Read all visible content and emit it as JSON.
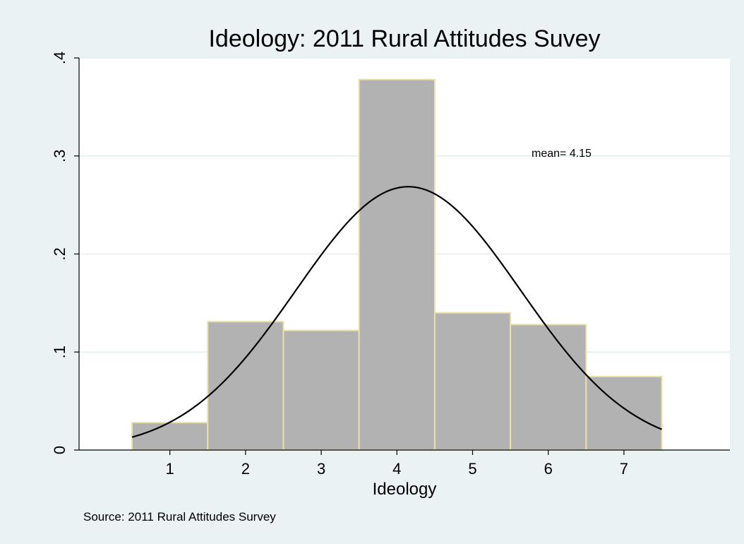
{
  "chart_data": {
    "type": "bar",
    "title": "Ideology: 2011 Rural Attitudes Suvey",
    "xlabel": "Ideology",
    "ylabel": "",
    "categories": [
      1,
      2,
      3,
      4,
      5,
      6,
      7
    ],
    "values": [
      0.028,
      0.131,
      0.122,
      0.378,
      0.14,
      0.128,
      0.075
    ],
    "x_ticks": [
      1,
      2,
      3,
      4,
      5,
      6,
      7
    ],
    "y_ticks": [
      0,
      0.1,
      0.2,
      0.3,
      0.4
    ],
    "y_tick_labels": [
      "0",
      ".1",
      ".2",
      ".3",
      ".4"
    ],
    "xlim": [
      -0.2,
      8.4
    ],
    "ylim": [
      0,
      0.4
    ],
    "grid": true,
    "overlay": {
      "type": "normal-density",
      "mean": 4.15,
      "sd": 1.485
    },
    "annotation": "mean= 4.15",
    "note": "Source: 2011 Rural Attitudes Survey",
    "colors": {
      "background": "#eaf2f3",
      "plot_background": "#ffffff",
      "bar_fill": "#b2b2b2",
      "bar_outline": "#e8e2a8",
      "gridline": "#e3eef0",
      "curve": "#000000"
    }
  }
}
